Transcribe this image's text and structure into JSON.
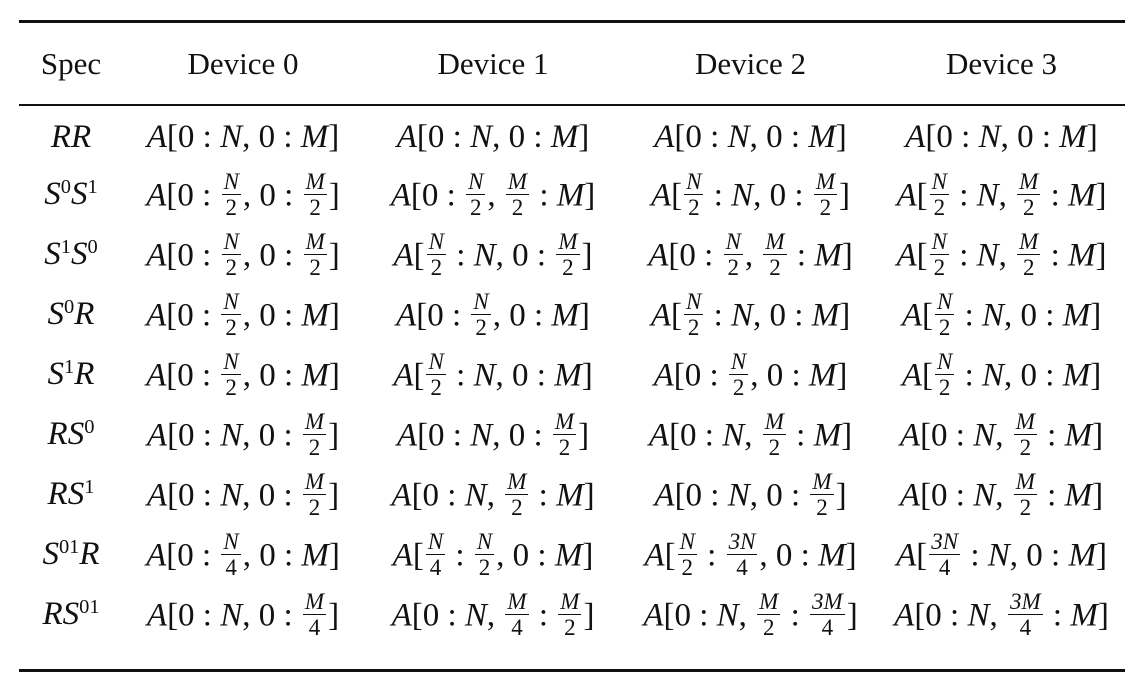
{
  "table": {
    "headers": [
      "Spec",
      "Device 0",
      "Device 1",
      "Device 2",
      "Device 3"
    ],
    "rows": [
      {
        "spec": "RR",
        "cells": [
          "A[0 : N, 0 : M]",
          "A[0 : N, 0 : M]",
          "A[0 : N, 0 : M]",
          "A[0 : N, 0 : M]"
        ]
      },
      {
        "spec": "S^0S^1",
        "cells": [
          "A[0 : N/2, 0 : M/2]",
          "A[0 : N/2, M/2 : M]",
          "A[N/2 : N, 0 : M/2]",
          "A[N/2 : N, M/2 : M]"
        ]
      },
      {
        "spec": "S^1S^0",
        "cells": [
          "A[0 : N/2, 0 : M/2]",
          "A[N/2 : N, 0 : M/2]",
          "A[0 : N/2, M/2 : M]",
          "A[N/2 : N, M/2 : M]"
        ]
      },
      {
        "spec": "S^0R",
        "cells": [
          "A[0 : N/2, 0 : M]",
          "A[0 : N/2, 0 : M]",
          "A[N/2 : N, 0 : M]",
          "A[N/2 : N, 0 : M]"
        ]
      },
      {
        "spec": "S^1R",
        "cells": [
          "A[0 : N/2, 0 : M]",
          "A[N/2 : N, 0 : M]",
          "A[0 : N/2, 0 : M]",
          "A[N/2 : N, 0 : M]"
        ]
      },
      {
        "spec": "RS^0",
        "cells": [
          "A[0 : N, 0 : M/2]",
          "A[0 : N, 0 : M/2]",
          "A[0 : N, M/2 : M]",
          "A[0 : N, M/2 : M]"
        ]
      },
      {
        "spec": "RS^1",
        "cells": [
          "A[0 : N, 0 : M/2]",
          "A[0 : N, M/2 : M]",
          "A[0 : N, 0 : M/2]",
          "A[0 : N, M/2 : M]"
        ]
      },
      {
        "spec": "S^01R",
        "cells": [
          "A[0 : N/4, 0 : M]",
          "A[N/4 : N/2, 0 : M]",
          "A[N/2 : 3N/4, 0 : M]",
          "A[3N/4 : N, 0 : M]"
        ]
      },
      {
        "spec": "RS^01",
        "cells": [
          "A[0 : N, 0 : M/4]",
          "A[0 : N, M/4 : M/2]",
          "A[0 : N, M/2 : 3M/4]",
          "A[0 : N, 3M/4 : M]"
        ]
      }
    ]
  }
}
